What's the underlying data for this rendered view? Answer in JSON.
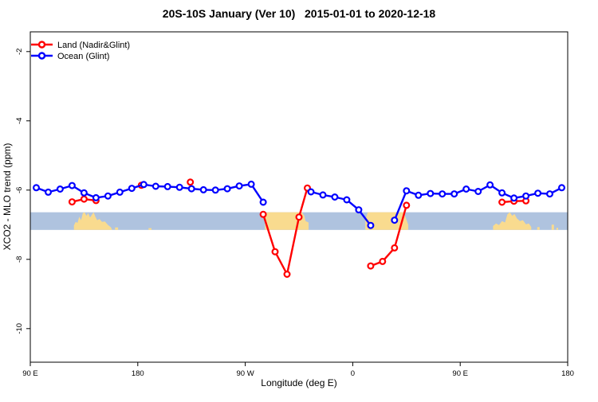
{
  "chart_data": {
    "type": "line",
    "title": "20S-10S January (Ver 10)   2015-01-01 to 2020-12-18",
    "xlabel": "Longitude (deg E)",
    "ylabel": "XCO2 - MLO trend (ppm)",
    "x_range": [
      90,
      540
    ],
    "y_range": [
      -10.97,
      -1.43
    ],
    "x_ticks": [
      {
        "value": 90,
        "label": "90 E"
      },
      {
        "value": 180,
        "label": "180"
      },
      {
        "value": 270,
        "label": "90 W"
      },
      {
        "value": 360,
        "label": "0"
      },
      {
        "value": 450,
        "label": "90 E"
      },
      {
        "value": 540,
        "label": "180"
      }
    ],
    "y_ticks": [
      {
        "value": -2,
        "label": "-2"
      },
      {
        "value": -4,
        "label": "-4"
      },
      {
        "value": -6,
        "label": "-6"
      },
      {
        "value": -8,
        "label": "-8"
      },
      {
        "value": -10,
        "label": "-10"
      }
    ],
    "band": {
      "y_top": -6.64,
      "y_bottom": -7.15,
      "color": "#AFC3DF"
    },
    "land_shading": {
      "color": "#F9DB8F",
      "patches": [
        [
          [
            126.5,
            0
          ],
          [
            126.5,
            0.25
          ],
          [
            128,
            0.45
          ],
          [
            129.5,
            0.4
          ],
          [
            131,
            0.75
          ],
          [
            132.5,
            0.55
          ],
          [
            134,
            0.95
          ],
          [
            135.5,
            1
          ],
          [
            137,
            0.8
          ],
          [
            138.5,
            0.95
          ],
          [
            140,
            0.7
          ],
          [
            141.5,
            0.85
          ],
          [
            143,
            1
          ],
          [
            144.5,
            0.75
          ],
          [
            146,
            0.55
          ],
          [
            148,
            0.62
          ],
          [
            150,
            0.45
          ],
          [
            152.5,
            0.48
          ],
          [
            155,
            0.28
          ],
          [
            157.5,
            0.15
          ],
          [
            158.5,
            0
          ]
        ],
        [
          [
            161,
            0
          ],
          [
            161,
            0.14
          ],
          [
            163.5,
            0.14
          ],
          [
            163.5,
            0
          ]
        ],
        [
          [
            189,
            0
          ],
          [
            189,
            0.1
          ],
          [
            191.5,
            0.1
          ],
          [
            191.5,
            0
          ]
        ],
        [
          [
            286.5,
            0
          ],
          [
            286.5,
            0.85
          ],
          [
            288.5,
            1
          ],
          [
            317.5,
            1
          ],
          [
            319.5,
            0.8
          ],
          [
            320.5,
            0.5
          ],
          [
            323,
            0.42
          ],
          [
            323,
            0
          ]
        ],
        [
          [
            370.5,
            0
          ],
          [
            370.5,
            0.5
          ],
          [
            372.5,
            1
          ],
          [
            402.5,
            1
          ],
          [
            404.5,
            0.65
          ],
          [
            406.5,
            0.3
          ],
          [
            406.5,
            0
          ]
        ],
        [
          [
            477.5,
            0
          ],
          [
            477.5,
            0.22
          ],
          [
            480,
            0.36
          ],
          [
            482.5,
            0.27
          ],
          [
            485,
            0.5
          ],
          [
            487.5,
            0.42
          ],
          [
            489.5,
            0.88
          ],
          [
            491.5,
            1
          ],
          [
            493.5,
            0.8
          ],
          [
            495.5,
            0.9
          ],
          [
            497.5,
            0.65
          ],
          [
            500,
            0.5
          ],
          [
            502.5,
            0.55
          ],
          [
            505,
            0.32
          ],
          [
            507.5,
            0.36
          ],
          [
            509.5,
            0.16
          ],
          [
            509.5,
            0
          ]
        ],
        [
          [
            514.5,
            0
          ],
          [
            514.5,
            0.16
          ],
          [
            516.5,
            0.16
          ],
          [
            516.5,
            0
          ]
        ],
        [
          [
            526.5,
            0
          ],
          [
            526.5,
            0.3
          ],
          [
            528.5,
            0.3
          ],
          [
            528.5,
            0
          ]
        ],
        [
          [
            530.5,
            0
          ],
          [
            530.5,
            0.12
          ],
          [
            532,
            0.12
          ],
          [
            532,
            0
          ]
        ]
      ]
    },
    "series": [
      {
        "name": "Land (Nadir&Glint)",
        "color": "#FF0000",
        "segments": [
          [
            [
              125,
              -6.34
            ],
            [
              135,
              -6.26
            ],
            [
              145,
              -6.3
            ]
          ],
          [
            [
              183,
              -5.86
            ]
          ],
          [
            [
              224,
              -5.77
            ]
          ],
          [
            [
              285,
              -6.7
            ],
            [
              295,
              -7.78
            ],
            [
              305,
              -8.43
            ],
            [
              315,
              -6.78
            ],
            [
              322,
              -5.94
            ]
          ],
          [
            [
              375,
              -8.19
            ],
            [
              385,
              -8.06
            ],
            [
              395,
              -7.67
            ],
            [
              405,
              -6.44
            ]
          ],
          [
            [
              485,
              -6.35
            ],
            [
              495,
              -6.32
            ],
            [
              505,
              -6.31
            ]
          ]
        ]
      },
      {
        "name": "Ocean (Glint)",
        "color": "#0000FF",
        "segments": [
          [
            [
              95,
              -5.93
            ],
            [
              105,
              -6.06
            ],
            [
              115,
              -5.97
            ],
            [
              125,
              -5.87
            ],
            [
              135,
              -6.08
            ],
            [
              145,
              -6.22
            ],
            [
              155,
              -6.17
            ],
            [
              165,
              -6.06
            ],
            [
              175,
              -5.95
            ],
            [
              185,
              -5.84
            ],
            [
              195,
              -5.89
            ],
            [
              205,
              -5.9
            ],
            [
              215,
              -5.92
            ],
            [
              225,
              -5.96
            ],
            [
              235,
              -5.99
            ],
            [
              245,
              -6.0
            ],
            [
              255,
              -5.96
            ],
            [
              265,
              -5.88
            ],
            [
              275,
              -5.83
            ],
            [
              285,
              -6.35
            ]
          ],
          [
            [
              325,
              -6.05
            ],
            [
              335,
              -6.14
            ],
            [
              345,
              -6.2
            ],
            [
              355,
              -6.28
            ],
            [
              365,
              -6.57
            ],
            [
              375,
              -7.02
            ]
          ],
          [
            [
              395,
              -6.87
            ],
            [
              405,
              -6.02
            ],
            [
              415,
              -6.15
            ],
            [
              425,
              -6.1
            ],
            [
              435,
              -6.11
            ],
            [
              445,
              -6.11
            ],
            [
              455,
              -5.97
            ],
            [
              465,
              -6.04
            ],
            [
              475,
              -5.85
            ],
            [
              485,
              -6.08
            ],
            [
              495,
              -6.23
            ],
            [
              505,
              -6.17
            ],
            [
              515,
              -6.09
            ],
            [
              525,
              -6.11
            ],
            [
              535,
              -5.93
            ]
          ]
        ]
      }
    ],
    "legend": {
      "position": "top-left"
    }
  }
}
